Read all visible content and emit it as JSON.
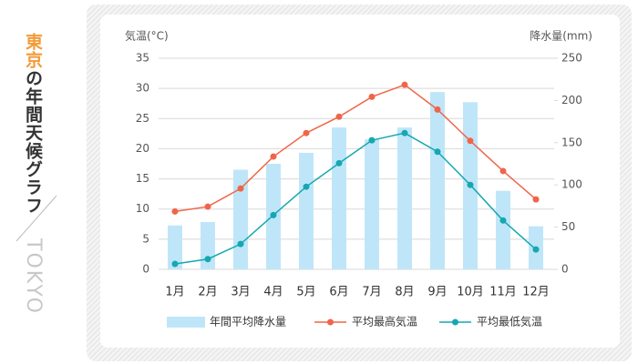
{
  "chart_data": {
    "type": "bar",
    "title_city": "東京",
    "title_rest": "の年間天候グラフ",
    "subtitle": "TOKYO",
    "y_label": "気温(°C)",
    "y2_label": "降水量(mm)",
    "categories": [
      "1月",
      "2月",
      "3月",
      "4月",
      "5月",
      "6月",
      "7月",
      "8月",
      "9月",
      "10月",
      "11月",
      "12月"
    ],
    "series": [
      {
        "name": "年間平均降水量",
        "type": "bar",
        "axis": "y2",
        "color": "#bfe6f8",
        "values": [
          52,
          56,
          118,
          125,
          138,
          168,
          154,
          168,
          210,
          198,
          93,
          51
        ]
      },
      {
        "name": "平均最高気温",
        "type": "line",
        "color": "#f0654a",
        "values": [
          9.6,
          10.4,
          13.4,
          18.7,
          22.6,
          25.3,
          28.6,
          30.6,
          26.5,
          21.3,
          16.3,
          11.6
        ]
      },
      {
        "name": "平均最低気温",
        "type": "line",
        "color": "#14a8b1",
        "values": [
          0.9,
          1.7,
          4.2,
          9.0,
          13.7,
          17.6,
          21.4,
          22.6,
          19.5,
          14.0,
          8.1,
          3.3
        ]
      }
    ],
    "ylim": [
      0,
      35
    ],
    "yticks": [
      0,
      5,
      10,
      15,
      20,
      25,
      30,
      35
    ],
    "y2lim": [
      0,
      250
    ],
    "y2ticks": [
      0,
      50,
      100,
      150,
      200,
      250
    ],
    "grid": true
  }
}
